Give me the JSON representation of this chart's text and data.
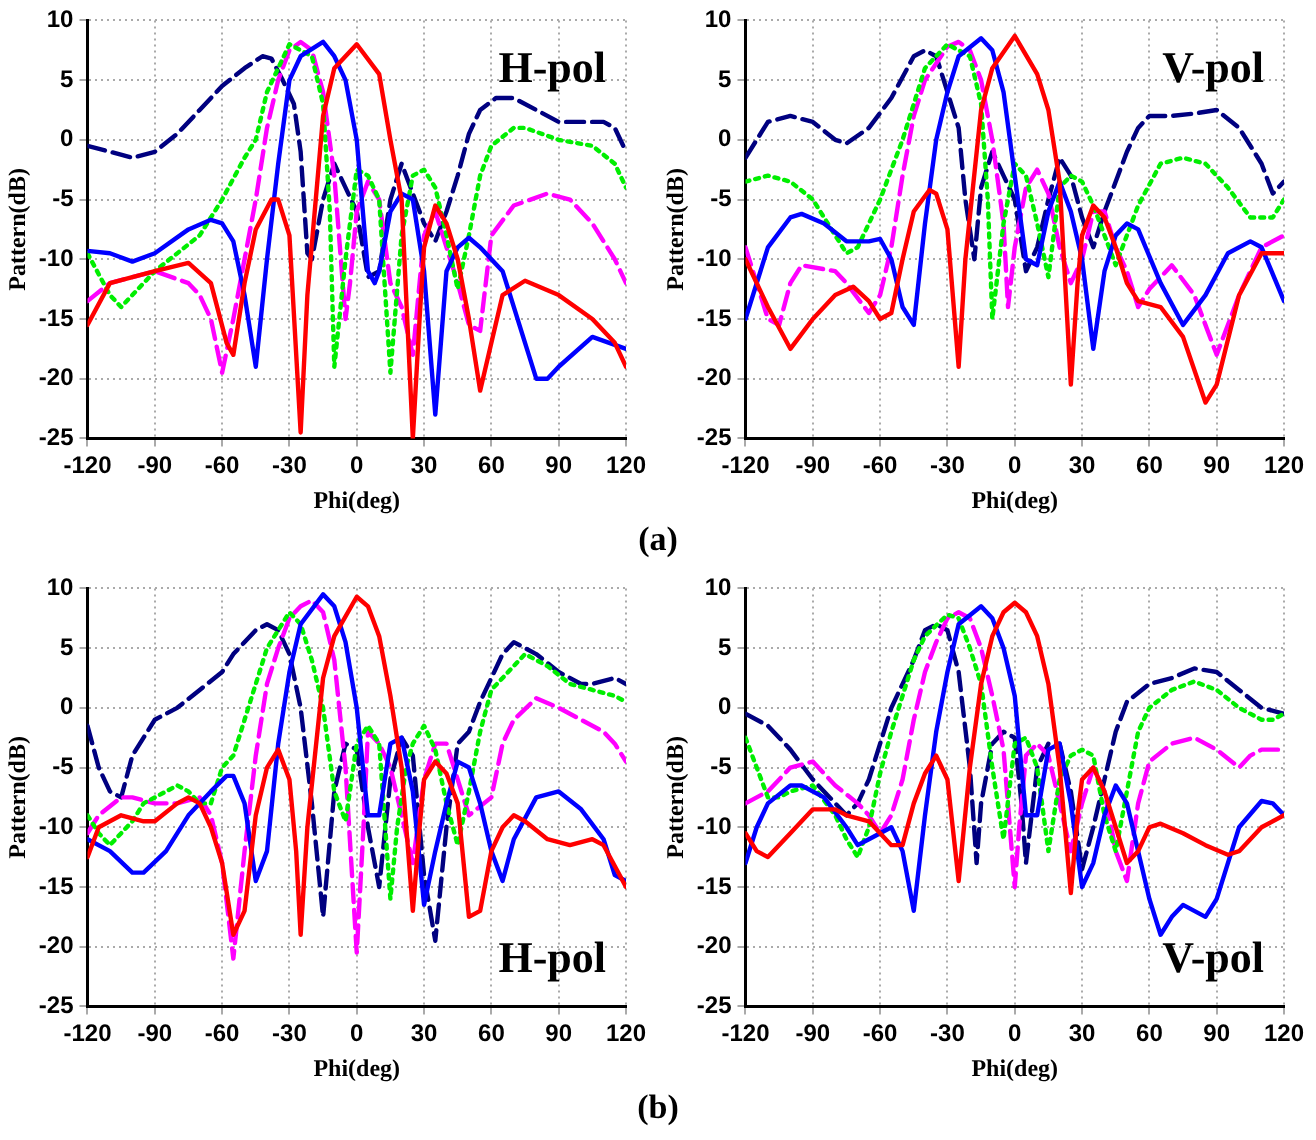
{
  "chart_data": [
    {
      "type": "line",
      "xlabel": "Phi(deg)",
      "ylabel": "Pattern(dB)",
      "annotations": [
        "H-pol",
        "(a)"
      ],
      "xlim": [
        -120,
        120
      ],
      "xticks": [
        -120,
        -90,
        -60,
        -30,
        0,
        30,
        60,
        90,
        120
      ],
      "ylim": [
        -25,
        10
      ],
      "yticks": [
        -25,
        -20,
        -15,
        -10,
        -5,
        0,
        5,
        10
      ],
      "grid": true,
      "legend": false,
      "marker": "none",
      "series": [
        {
          "color": "#ff0000",
          "line_style": "solid",
          "x": [
            -120,
            -110,
            -100,
            -90,
            -75,
            -65,
            -58,
            -55,
            -50,
            -45,
            -38,
            -35,
            -30,
            -25,
            -22,
            -15,
            -10,
            0,
            10,
            15,
            20,
            25,
            28,
            30,
            35,
            40,
            45,
            50,
            55,
            60,
            65,
            75,
            90,
            105,
            115,
            120
          ],
          "values": [
            -15.5,
            -12,
            -11.5,
            -11,
            -10.3,
            -12,
            -17,
            -18,
            -12,
            -7.5,
            -5,
            -5,
            -8,
            -24.5,
            -13,
            2,
            6,
            8,
            5.5,
            0,
            -5,
            -25,
            -15,
            -9,
            -5.5,
            -7,
            -10,
            -15,
            -21,
            -17,
            -13,
            -11.8,
            -13,
            -15,
            -17,
            -19
          ]
        },
        {
          "color": "#0000ff",
          "line_style": "solid",
          "x": [
            -120,
            -110,
            -100,
            -90,
            -75,
            -65,
            -60,
            -55,
            -50,
            -45,
            -40,
            -35,
            -30,
            -25,
            -15,
            -10,
            -5,
            0,
            5,
            8,
            10,
            15,
            20,
            25,
            30,
            35,
            40,
            45,
            50,
            55,
            65,
            75,
            80,
            85,
            90,
            105,
            120
          ],
          "values": [
            -9.3,
            -9.5,
            -10.2,
            -9.5,
            -7.5,
            -6.7,
            -7,
            -8.5,
            -13,
            -19,
            -10,
            -2,
            5,
            7,
            8.2,
            7,
            5,
            0,
            -11,
            -12,
            -11,
            -6,
            -4.5,
            -5,
            -11,
            -23,
            -11,
            -9,
            -8.2,
            -9,
            -11,
            -17,
            -20,
            -20,
            -19,
            -16.5,
            -17.5
          ]
        },
        {
          "color": "#00ee00",
          "line_style": "dotted",
          "x": [
            -120,
            -110,
            -105,
            -100,
            -90,
            -70,
            -60,
            -50,
            -45,
            -40,
            -30,
            -20,
            -15,
            -12,
            -10,
            -5,
            0,
            5,
            10,
            15,
            20,
            25,
            30,
            35,
            40,
            45,
            50,
            55,
            60,
            70,
            75,
            90,
            105,
            115,
            120
          ],
          "values": [
            -9.5,
            -13,
            -14,
            -13,
            -11,
            -8,
            -5,
            -1.5,
            0,
            4,
            8,
            7,
            3,
            -6,
            -19,
            -10,
            -2.5,
            -3,
            -5,
            -19.5,
            -8,
            -3,
            -2.5,
            -4,
            -8,
            -12.5,
            -8,
            -3,
            -0.5,
            1,
            1,
            0,
            -0.5,
            -2,
            -4
          ]
        },
        {
          "color": "#ff00ff",
          "line_style": "dashed",
          "x": [
            -120,
            -110,
            -100,
            -90,
            -75,
            -70,
            -65,
            -60,
            -55,
            -50,
            -45,
            -40,
            -35,
            -30,
            -25,
            -20,
            -15,
            -10,
            -5,
            -3,
            0,
            5,
            10,
            15,
            20,
            25,
            30,
            35,
            40,
            45,
            50,
            55,
            60,
            70,
            85,
            95,
            105,
            115,
            120
          ],
          "values": [
            -13.5,
            -12,
            -11.5,
            -11,
            -12,
            -13,
            -15,
            -19.5,
            -15,
            -10,
            -5,
            1,
            5,
            7.5,
            8.2,
            7.5,
            4,
            -3,
            -15,
            -12,
            -6,
            -3.5,
            -5,
            -12,
            -14,
            -18,
            -8,
            -6,
            -9,
            -12,
            -15.5,
            -16,
            -8,
            -5.5,
            -4.5,
            -5,
            -7,
            -10,
            -12
          ]
        },
        {
          "color": "#000080",
          "line_style": "dashed",
          "x": [
            -120,
            -110,
            -100,
            -90,
            -80,
            -70,
            -60,
            -50,
            -42,
            -38,
            -33,
            -28,
            -25,
            -22,
            -20,
            -15,
            -10,
            -5,
            0,
            5,
            10,
            15,
            20,
            25,
            30,
            35,
            40,
            45,
            50,
            55,
            62,
            70,
            80,
            90,
            100,
            110,
            115,
            120
          ],
          "values": [
            -0.5,
            -1,
            -1.5,
            -1,
            0.5,
            2.5,
            4.5,
            6,
            7,
            6.8,
            5,
            3,
            -1,
            -9.5,
            -10,
            -5,
            -2,
            -4,
            -6,
            -11.5,
            -11,
            -5,
            -2,
            -4.5,
            -7,
            -8.5,
            -6,
            -3,
            0.5,
            2.5,
            3.5,
            3.5,
            2.5,
            1.5,
            1.5,
            1.5,
            1,
            -1
          ]
        }
      ]
    },
    {
      "type": "line",
      "xlabel": "Phi(deg)",
      "ylabel": "Pattern(dB)",
      "annotations": [
        "V-pol"
      ],
      "xlim": [
        -120,
        120
      ],
      "xticks": [
        -120,
        -90,
        -60,
        -30,
        0,
        30,
        60,
        90,
        120
      ],
      "ylim": [
        -25,
        10
      ],
      "yticks": [
        -25,
        -20,
        -15,
        -10,
        -5,
        0,
        5,
        10
      ],
      "grid": true,
      "legend": false,
      "marker": "none",
      "series": [
        {
          "color": "#ff0000",
          "line_style": "solid",
          "x": [
            -120,
            -110,
            -100,
            -90,
            -80,
            -72,
            -65,
            -60,
            -55,
            -50,
            -45,
            -38,
            -35,
            -30,
            -25,
            -22,
            -15,
            -10,
            0,
            10,
            15,
            20,
            25,
            28,
            30,
            35,
            40,
            45,
            50,
            55,
            65,
            75,
            85,
            90,
            100,
            110,
            120
          ],
          "values": [
            -10,
            -14,
            -17.5,
            -15,
            -13,
            -12.3,
            -13.5,
            -15,
            -14.5,
            -10,
            -6,
            -4.2,
            -4.5,
            -7.5,
            -19,
            -10,
            2.5,
            6,
            8.7,
            5.5,
            2.5,
            -3.5,
            -20.5,
            -12,
            -8,
            -5.5,
            -6.5,
            -9,
            -12,
            -13.5,
            -14,
            -16.5,
            -22,
            -20.5,
            -13,
            -9.5,
            -9.5
          ]
        },
        {
          "color": "#0000ff",
          "line_style": "solid",
          "x": [
            -120,
            -110,
            -100,
            -95,
            -85,
            -75,
            -65,
            -60,
            -55,
            -50,
            -45,
            -40,
            -35,
            -30,
            -25,
            -15,
            -10,
            -5,
            0,
            5,
            10,
            15,
            20,
            25,
            30,
            35,
            40,
            45,
            50,
            55,
            65,
            75,
            85,
            95,
            105,
            110,
            120
          ],
          "values": [
            -15,
            -9,
            -6.5,
            -6.2,
            -7,
            -8.5,
            -8.5,
            -8.3,
            -10,
            -14,
            -15.5,
            -7,
            0,
            4,
            7,
            8.5,
            7.5,
            4,
            -3,
            -10,
            -10.5,
            -6,
            -3.5,
            -6,
            -10,
            -17.5,
            -11,
            -8,
            -7,
            -7.5,
            -12,
            -15.5,
            -13,
            -9.5,
            -8.5,
            -9,
            -13.5
          ]
        },
        {
          "color": "#00ee00",
          "line_style": "dotted",
          "x": [
            -120,
            -110,
            -100,
            -90,
            -80,
            -75,
            -70,
            -60,
            -50,
            -45,
            -40,
            -30,
            -20,
            -15,
            -12,
            -10,
            -5,
            0,
            5,
            10,
            15,
            20,
            25,
            30,
            35,
            45,
            55,
            65,
            75,
            85,
            95,
            105,
            115,
            120
          ],
          "values": [
            -3.5,
            -3,
            -3.5,
            -5,
            -8,
            -9.5,
            -9,
            -5,
            0,
            3,
            6,
            8,
            7,
            3,
            -5,
            -15,
            -7,
            -2,
            -3,
            -7,
            -11.5,
            -4,
            -3,
            -3.5,
            -5.5,
            -10.5,
            -5.5,
            -2,
            -1.5,
            -2,
            -4,
            -6.5,
            -6.5,
            -5
          ]
        },
        {
          "color": "#ff00ff",
          "line_style": "dashed",
          "x": [
            -120,
            -115,
            -110,
            -105,
            -100,
            -95,
            -80,
            -75,
            -65,
            -60,
            -55,
            -50,
            -45,
            -40,
            -30,
            -25,
            -20,
            -15,
            -10,
            -5,
            -3,
            0,
            5,
            10,
            15,
            20,
            25,
            30,
            35,
            40,
            45,
            50,
            55,
            60,
            70,
            80,
            90,
            100,
            110,
            120
          ],
          "values": [
            -9,
            -12,
            -15,
            -15.5,
            -12,
            -10.5,
            -11,
            -12,
            -14.5,
            -13,
            -9,
            -3,
            2,
            5,
            7.8,
            8.2,
            7.5,
            5,
            0,
            -7,
            -14,
            -9,
            -4,
            -2.5,
            -4.5,
            -9,
            -12,
            -10,
            -6,
            -6,
            -9,
            -11,
            -14,
            -12.5,
            -10.5,
            -13,
            -18,
            -13,
            -9,
            -8
          ]
        },
        {
          "color": "#000080",
          "line_style": "dashed",
          "x": [
            -120,
            -110,
            -100,
            -90,
            -80,
            -75,
            -65,
            -55,
            -45,
            -40,
            -35,
            -30,
            -25,
            -22,
            -18,
            -15,
            -10,
            -5,
            0,
            5,
            10,
            15,
            20,
            25,
            30,
            35,
            40,
            50,
            55,
            60,
            70,
            80,
            90,
            100,
            110,
            115,
            120
          ],
          "values": [
            -1.5,
            1.5,
            2,
            1.5,
            0,
            -0.3,
            1,
            3.5,
            7,
            7.5,
            7,
            4,
            1,
            -5,
            -10,
            -4,
            -1,
            -3,
            -5,
            -11,
            -9,
            -5,
            -1.5,
            -3,
            -6.5,
            -9,
            -6,
            -1,
            1,
            2,
            2,
            2.2,
            2.5,
            1,
            -2,
            -4.5,
            -3.5
          ]
        }
      ]
    },
    {
      "type": "line",
      "xlabel": "Phi(deg)",
      "ylabel": "Pattern(dB)",
      "annotations": [
        "H-pol",
        "(b)"
      ],
      "xlim": [
        -120,
        120
      ],
      "xticks": [
        -120,
        -90,
        -60,
        -30,
        0,
        30,
        60,
        90,
        120
      ],
      "ylim": [
        -25,
        10
      ],
      "yticks": [
        -25,
        -20,
        -15,
        -10,
        -5,
        0,
        5,
        10
      ],
      "grid": true,
      "legend": false,
      "marker": "none",
      "series": [
        {
          "color": "#ff0000",
          "line_style": "solid",
          "x": [
            -120,
            -115,
            -110,
            -105,
            -95,
            -90,
            -80,
            -75,
            -70,
            -65,
            -60,
            -55,
            -50,
            -45,
            -40,
            -35,
            -30,
            -27,
            -25,
            -22,
            -15,
            -10,
            0,
            5,
            10,
            15,
            20,
            25,
            28,
            30,
            35,
            40,
            45,
            50,
            55,
            60,
            65,
            70,
            75,
            85,
            95,
            105,
            110,
            120
          ],
          "values": [
            -12.5,
            -10,
            -9.5,
            -9,
            -9.5,
            -9.5,
            -8,
            -7.5,
            -8,
            -10,
            -13,
            -19,
            -17,
            -9,
            -5,
            -3.5,
            -6,
            -12,
            -19,
            -10,
            2.5,
            6,
            9.3,
            8.5,
            6,
            1,
            -5,
            -17,
            -10,
            -6,
            -4.5,
            -5.5,
            -8,
            -17.5,
            -17,
            -12,
            -10,
            -9,
            -9.5,
            -11,
            -11.5,
            -11,
            -11.5,
            -15
          ]
        },
        {
          "color": "#0000ff",
          "line_style": "solid",
          "x": [
            -120,
            -110,
            -100,
            -95,
            -85,
            -75,
            -65,
            -58,
            -55,
            -50,
            -45,
            -40,
            -35,
            -30,
            -25,
            -15,
            -10,
            -5,
            0,
            5,
            10,
            15,
            20,
            25,
            30,
            35,
            40,
            45,
            50,
            55,
            60,
            65,
            70,
            80,
            90,
            100,
            110,
            115,
            120
          ],
          "values": [
            -11,
            -12,
            -13.8,
            -13.8,
            -12,
            -9,
            -7,
            -5.7,
            -5.7,
            -8,
            -14.5,
            -12,
            -3,
            3,
            7,
            9.5,
            8.5,
            5.5,
            0,
            -9,
            -9,
            -3,
            -2.5,
            -7,
            -16.5,
            -12,
            -8,
            -4.5,
            -5,
            -8,
            -12,
            -14.5,
            -11,
            -7.5,
            -7,
            -8.5,
            -11,
            -14,
            -14.5
          ]
        },
        {
          "color": "#00ee00",
          "line_style": "dotted",
          "x": [
            -120,
            -115,
            -110,
            -100,
            -95,
            -80,
            -75,
            -70,
            -65,
            -60,
            -55,
            -50,
            -40,
            -30,
            -25,
            -20,
            -15,
            -10,
            -5,
            0,
            5,
            10,
            15,
            18,
            22,
            25,
            30,
            35,
            40,
            45,
            50,
            55,
            60,
            70,
            75,
            85,
            95,
            105,
            115,
            120
          ],
          "values": [
            -9,
            -10.5,
            -11.5,
            -9.5,
            -8,
            -6.5,
            -7,
            -8,
            -8,
            -5,
            -4,
            -1,
            5,
            8,
            7,
            4,
            0,
            -7,
            -9.5,
            -3,
            -1.5,
            -3,
            -16,
            -10,
            -5,
            -3,
            -1.5,
            -3.5,
            -8,
            -11.5,
            -7,
            -2,
            1.5,
            3.5,
            4.5,
            3.5,
            2,
            1.5,
            1,
            0.5
          ]
        },
        {
          "color": "#ff00ff",
          "line_style": "dashed",
          "x": [
            -120,
            -115,
            -105,
            -100,
            -90,
            -80,
            -70,
            -65,
            -60,
            -55,
            -50,
            -45,
            -40,
            -35,
            -30,
            -25,
            -20,
            -15,
            -10,
            -5,
            0,
            3,
            5,
            10,
            15,
            20,
            25,
            30,
            35,
            40,
            45,
            50,
            60,
            65,
            70,
            80,
            90,
            100,
            110,
            115,
            120
          ],
          "values": [
            -10.5,
            -9,
            -7.5,
            -7.5,
            -8,
            -8,
            -7.5,
            -9,
            -13,
            -21,
            -12,
            -4,
            2,
            5,
            7.5,
            8.5,
            9,
            8,
            4,
            -5,
            -20.5,
            -10,
            -2,
            -3,
            -5,
            -9,
            -13,
            -6,
            -3,
            -3,
            -6,
            -9,
            -7.5,
            -3,
            -1,
            0.8,
            0,
            -1,
            -2,
            -3,
            -4.5
          ]
        },
        {
          "color": "#000080",
          "line_style": "dashed",
          "x": [
            -120,
            -115,
            -110,
            -105,
            -100,
            -90,
            -80,
            -70,
            -60,
            -55,
            -45,
            -40,
            -35,
            -30,
            -25,
            -20,
            -15,
            -10,
            -5,
            0,
            5,
            10,
            15,
            20,
            25,
            30,
            35,
            40,
            45,
            50,
            55,
            60,
            65,
            70,
            80,
            90,
            100,
            105,
            115,
            120
          ],
          "values": [
            -1.5,
            -5,
            -7,
            -7.5,
            -4,
            -1,
            0,
            1.5,
            3,
            4.5,
            6.5,
            7,
            6.5,
            4.5,
            0,
            -8,
            -17.5,
            -7,
            -3,
            -3.5,
            -10,
            -15,
            -6,
            -2.5,
            -4,
            -14,
            -19.5,
            -10,
            -3,
            -2,
            0.5,
            2.5,
            4.5,
            5.5,
            4.5,
            3,
            2,
            2,
            2.5,
            2
          ]
        }
      ]
    },
    {
      "type": "line",
      "xlabel": "Phi(deg)",
      "ylabel": "Pattern(dB)",
      "annotations": [
        "V-pol"
      ],
      "xlim": [
        -120,
        120
      ],
      "xticks": [
        -120,
        -90,
        -60,
        -30,
        0,
        30,
        60,
        90,
        120
      ],
      "ylim": [
        -25,
        10
      ],
      "yticks": [
        -25,
        -20,
        -15,
        -10,
        -5,
        0,
        5,
        10
      ],
      "grid": true,
      "legend": false,
      "marker": "none",
      "series": [
        {
          "color": "#ff0000",
          "line_style": "solid",
          "x": [
            -120,
            -115,
            -110,
            -100,
            -90,
            -80,
            -75,
            -65,
            -60,
            -55,
            -50,
            -45,
            -40,
            -35,
            -30,
            -25,
            -20,
            -15,
            -10,
            -5,
            0,
            5,
            10,
            15,
            20,
            25,
            28,
            30,
            35,
            40,
            45,
            50,
            55,
            60,
            65,
            75,
            85,
            95,
            100,
            110,
            120
          ],
          "values": [
            -10.5,
            -12,
            -12.5,
            -10.5,
            -8.5,
            -8.5,
            -9,
            -9.5,
            -10.5,
            -11.5,
            -11.5,
            -8,
            -5.5,
            -4,
            -6,
            -14.5,
            -5,
            2,
            6,
            8,
            8.8,
            8,
            6,
            2,
            -5,
            -15.5,
            -9,
            -6,
            -5,
            -7,
            -10,
            -13,
            -12,
            -10,
            -9.7,
            -10.5,
            -11.5,
            -12.3,
            -12,
            -10,
            -9
          ]
        },
        {
          "color": "#0000ff",
          "line_style": "solid",
          "x": [
            -120,
            -115,
            -110,
            -100,
            -95,
            -85,
            -75,
            -70,
            -65,
            -60,
            -55,
            -50,
            -45,
            -40,
            -35,
            -30,
            -25,
            -15,
            -10,
            -5,
            0,
            5,
            10,
            15,
            20,
            25,
            30,
            35,
            40,
            45,
            50,
            55,
            60,
            65,
            70,
            75,
            85,
            90,
            95,
            100,
            110,
            115,
            120
          ],
          "values": [
            -13,
            -10,
            -8,
            -6.5,
            -6.5,
            -7.5,
            -10,
            -11.5,
            -11,
            -10.5,
            -10,
            -12,
            -17,
            -9,
            -2,
            3,
            7,
            8.5,
            7.5,
            5,
            1,
            -9,
            -9,
            -3.5,
            -3,
            -8,
            -15,
            -13,
            -9,
            -6.5,
            -8,
            -12,
            -16,
            -19,
            -17.5,
            -16.5,
            -17.5,
            -16,
            -13,
            -10,
            -7.8,
            -8,
            -9
          ]
        },
        {
          "color": "#00ee00",
          "line_style": "dotted",
          "x": [
            -120,
            -115,
            -110,
            -105,
            -100,
            -90,
            -80,
            -75,
            -70,
            -65,
            -60,
            -55,
            -50,
            -45,
            -40,
            -30,
            -25,
            -20,
            -15,
            -10,
            -5,
            0,
            5,
            10,
            15,
            20,
            25,
            30,
            35,
            40,
            45,
            50,
            55,
            60,
            70,
            80,
            90,
            100,
            110,
            115,
            120
          ],
          "values": [
            -2.5,
            -5,
            -7.5,
            -7.5,
            -7,
            -6.5,
            -9,
            -11,
            -12.5,
            -10,
            -5.5,
            -2,
            1,
            4,
            6,
            7.8,
            7.5,
            5,
            2,
            -5,
            -11,
            -3,
            -2.5,
            -5,
            -12,
            -6,
            -4,
            -3.5,
            -4,
            -9,
            -12,
            -7,
            -2,
            0,
            1.5,
            2.2,
            1.5,
            0,
            -1,
            -1,
            -0.5
          ]
        },
        {
          "color": "#ff00ff",
          "line_style": "dashed",
          "x": [
            -120,
            -110,
            -100,
            -90,
            -80,
            -70,
            -65,
            -60,
            -55,
            -50,
            -45,
            -40,
            -35,
            -30,
            -25,
            -20,
            -15,
            -10,
            -5,
            0,
            2,
            5,
            10,
            15,
            20,
            25,
            30,
            35,
            40,
            45,
            50,
            55,
            60,
            70,
            80,
            90,
            100,
            105,
            110,
            120
          ],
          "values": [
            -8,
            -7,
            -5,
            -4.5,
            -6.5,
            -8,
            -9,
            -10.5,
            -9,
            -6,
            -1,
            3,
            5.5,
            7.5,
            8,
            7.5,
            5,
            1,
            -3.5,
            -15,
            -10,
            -4,
            -3,
            -4,
            -8,
            -12,
            -8,
            -5,
            -7,
            -12,
            -14.5,
            -8,
            -4.5,
            -3,
            -2.5,
            -3.5,
            -5,
            -4,
            -3.5,
            -3.5
          ]
        },
        {
          "color": "#000080",
          "line_style": "dashed",
          "x": [
            -120,
            -110,
            -100,
            -90,
            -80,
            -75,
            -70,
            -65,
            -60,
            -55,
            -45,
            -40,
            -35,
            -30,
            -25,
            -20,
            -17,
            -15,
            -10,
            -5,
            0,
            3,
            5,
            10,
            15,
            20,
            25,
            30,
            35,
            40,
            45,
            50,
            60,
            70,
            80,
            90,
            100,
            110,
            120
          ],
          "values": [
            -0.5,
            -1.5,
            -3.5,
            -6,
            -8,
            -9,
            -8,
            -6,
            -3,
            0,
            4,
            6.5,
            7,
            6.5,
            3,
            -5,
            -13,
            -8,
            -3,
            -2,
            -2.5,
            -8,
            -13,
            -5,
            -3,
            -3,
            -7,
            -13.5,
            -10,
            -6,
            -2,
            0.5,
            2,
            2.5,
            3.3,
            3,
            1.5,
            0,
            -0.5
          ]
        }
      ]
    }
  ]
}
